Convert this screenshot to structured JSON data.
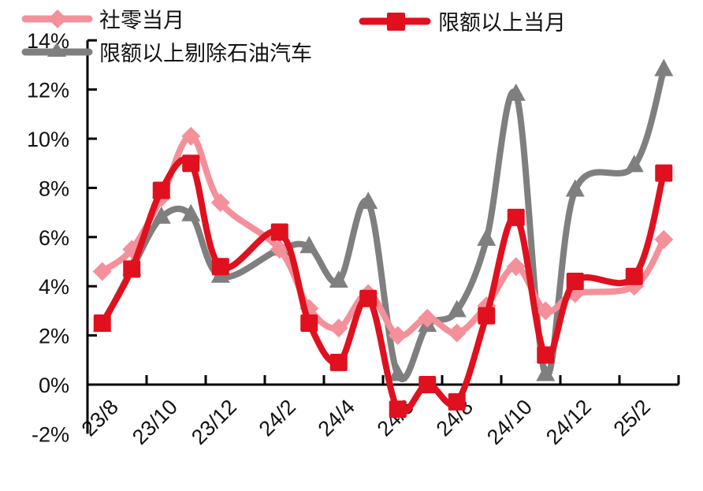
{
  "chart_data": {
    "type": "line",
    "title": "",
    "xlabel": "",
    "ylabel": "",
    "ylim": [
      -2,
      14
    ],
    "yticks": [
      -2,
      0,
      2,
      4,
      6,
      8,
      10,
      12,
      14
    ],
    "ytick_labels": [
      "-2%",
      "0%",
      "2%",
      "4%",
      "6%",
      "8%",
      "10%",
      "12%",
      "14%"
    ],
    "xtick_labels": [
      "23/8",
      "23/10",
      "23/12",
      "24/2",
      "24/4",
      "24/6",
      "24/8",
      "24/10",
      "24/12",
      "25/2"
    ],
    "grid": false,
    "legend_position": "top",
    "x": [
      "23/8",
      "23/9",
      "23/10",
      "23/11",
      "23/12",
      "24/2",
      "24/3",
      "24/4",
      "24/5",
      "24/6",
      "24/7",
      "24/8",
      "24/9",
      "24/10",
      "24/11",
      "24/12",
      "25/2",
      "25/3"
    ],
    "x_index": [
      0,
      1,
      2,
      3,
      4,
      6,
      7,
      8,
      9,
      10,
      11,
      12,
      13,
      14,
      15,
      16,
      18,
      19
    ],
    "series": [
      {
        "name": "社零当月",
        "color": "#f4909a",
        "marker": "diamond",
        "values": [
          4.6,
          5.5,
          7.6,
          10.1,
          7.4,
          5.5,
          3.1,
          2.3,
          3.7,
          2.0,
          2.7,
          2.1,
          3.2,
          4.8,
          3.0,
          3.7,
          4.0,
          5.9
        ]
      },
      {
        "name": "限额以上当月",
        "color": "#e0101e",
        "marker": "square",
        "values": [
          2.5,
          4.7,
          7.9,
          9.0,
          4.8,
          6.2,
          2.5,
          0.9,
          3.5,
          -1.0,
          0.0,
          -0.7,
          2.8,
          6.8,
          1.2,
          4.2,
          4.4,
          8.6
        ]
      },
      {
        "name": "限额以上剔除石油汽车",
        "color": "#7f7f7f",
        "marker": "triangle",
        "values": [
          2.4,
          4.7,
          6.8,
          6.9,
          4.4,
          5.5,
          5.6,
          4.2,
          7.4,
          0.4,
          2.4,
          3.0,
          5.9,
          11.8,
          0.4,
          7.9,
          8.9,
          12.8
        ]
      }
    ]
  },
  "legend": {
    "items": [
      {
        "label": "社零当月"
      },
      {
        "label": "限额以上当月"
      },
      {
        "label": "限额以上剔除石油汽车"
      }
    ]
  }
}
